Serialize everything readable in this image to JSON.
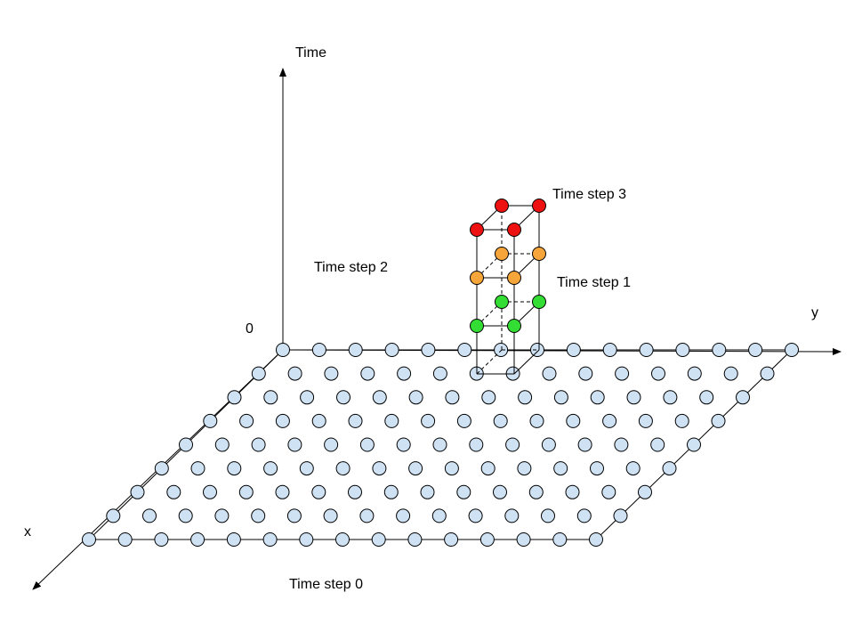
{
  "labels": {
    "time_axis": "Time",
    "y_axis": "y",
    "x_axis": "x",
    "origin": "0",
    "time_step_0": "Time step 0",
    "time_step_1": "Time step 1",
    "time_step_2": "Time step 2",
    "time_step_3": "Time step 3"
  },
  "grid": {
    "rows": 9,
    "cols": 15
  },
  "colors": {
    "grid_node_fill": "#cfe2f3",
    "node_stroke": "#000000",
    "time_step_1_fill": "#33dd33",
    "time_step_2_fill": "#f6a53a",
    "time_step_3_fill": "#ee1111",
    "line": "#000000"
  }
}
